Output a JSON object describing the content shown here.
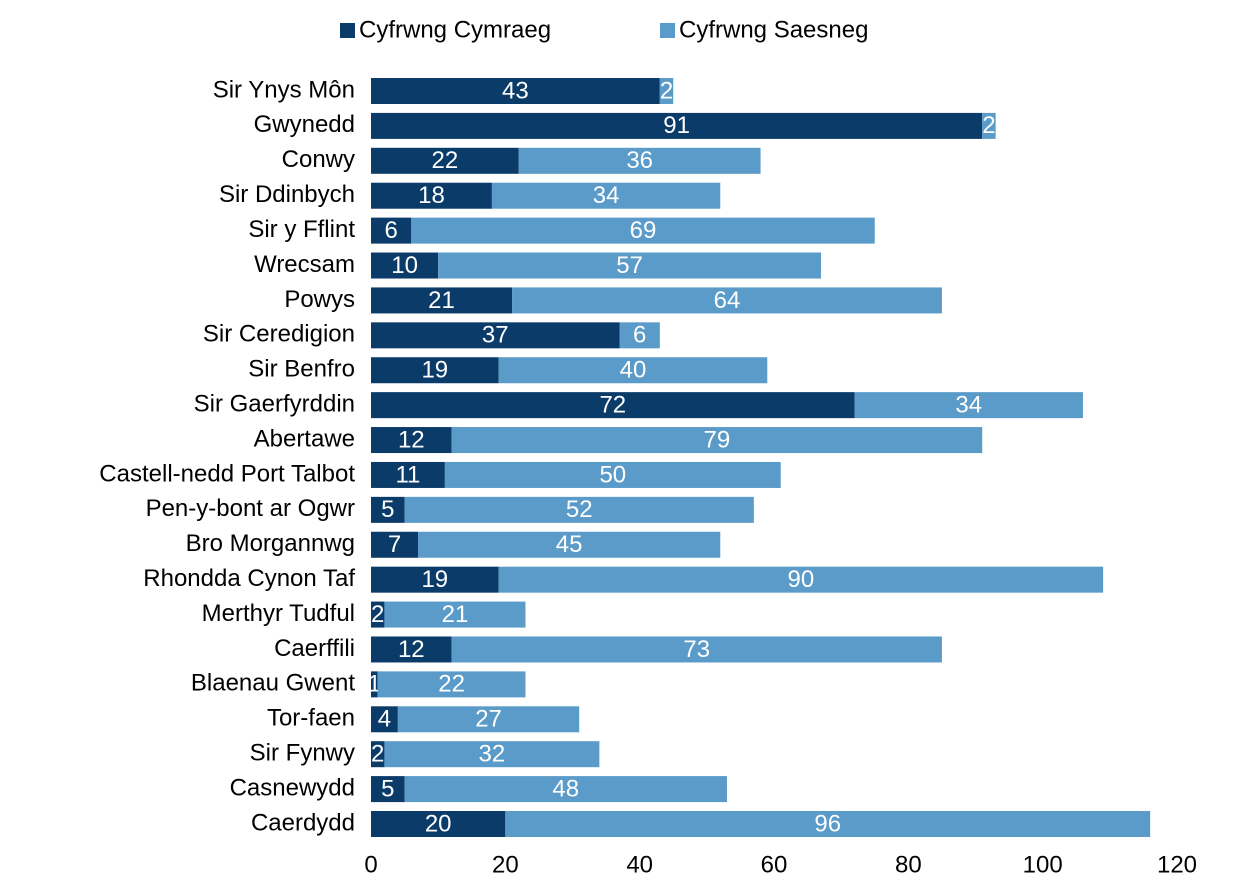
{
  "chart_data": {
    "type": "stacked_bar_horizontal",
    "categories": [
      "Sir Ynys Môn",
      "Gwynedd",
      "Conwy",
      "Sir Ddinbych",
      "Sir y Fflint",
      "Wrecsam",
      "Powys",
      "Sir Ceredigion",
      "Sir Benfro",
      "Sir Gaerfyrddin",
      "Abertawe",
      "Castell-nedd Port Talbot",
      "Pen-y-bont ar Ogwr",
      "Bro Morgannwg",
      "Rhondda Cynon Taf",
      "Merthyr Tudful",
      "Caerffili",
      "Blaenau Gwent",
      "Tor-faen",
      "Sir Fynwy",
      "Casnewydd",
      "Caerdydd"
    ],
    "series": [
      {
        "name": "Cyfrwng Cymraeg",
        "color": "#0b3b69",
        "values": [
          43,
          91,
          22,
          18,
          6,
          10,
          21,
          37,
          19,
          72,
          12,
          11,
          5,
          7,
          19,
          2,
          12,
          1,
          4,
          2,
          5,
          20
        ]
      },
      {
        "name": "Cyfrwng Saesneg",
        "color": "#5b9bc9",
        "values": [
          2,
          2,
          36,
          34,
          69,
          57,
          64,
          6,
          40,
          34,
          79,
          50,
          52,
          45,
          90,
          21,
          73,
          22,
          27,
          32,
          48,
          96
        ]
      }
    ],
    "xlim": [
      0,
      120
    ],
    "xticks": [
      0,
      20,
      40,
      60,
      80,
      100,
      120
    ],
    "legend": "top"
  }
}
